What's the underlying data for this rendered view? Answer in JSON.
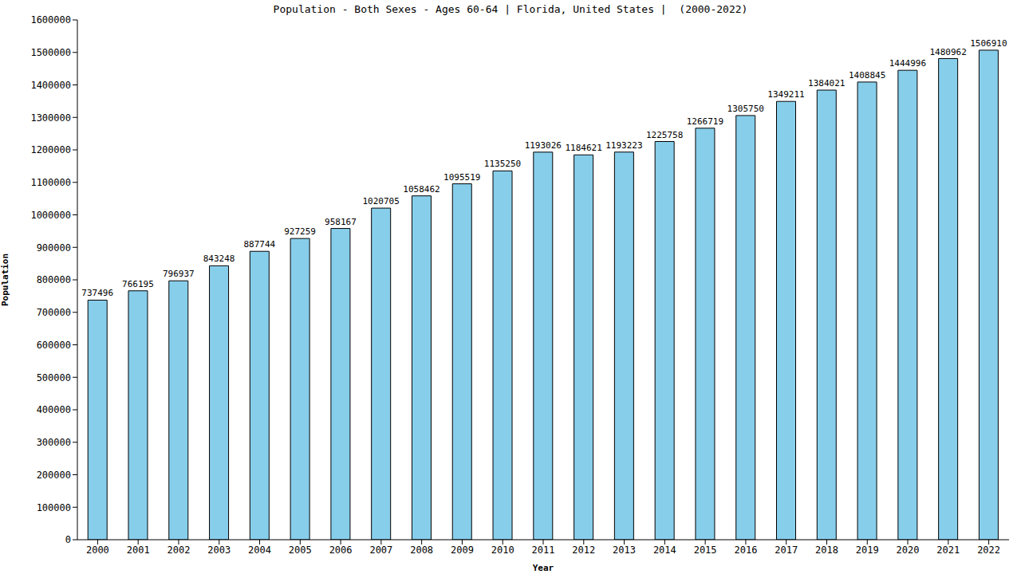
{
  "chart_data": {
    "type": "bar",
    "title": "Population - Both Sexes - Ages 60-64 | Florida, United States |  (2000-2022)",
    "x_label": "Year",
    "y_label": "Population",
    "categories": [
      "2000",
      "2001",
      "2002",
      "2003",
      "2004",
      "2005",
      "2006",
      "2007",
      "2008",
      "2009",
      "2010",
      "2011",
      "2012",
      "2013",
      "2014",
      "2015",
      "2016",
      "2017",
      "2018",
      "2019",
      "2020",
      "2021",
      "2022"
    ],
    "values": [
      737496,
      766195,
      796937,
      843248,
      887744,
      927259,
      958167,
      1020705,
      1058462,
      1095519,
      1135250,
      1193026,
      1184621,
      1193223,
      1225758,
      1266719,
      1305750,
      1349211,
      1384021,
      1408845,
      1444996,
      1480962,
      1506910
    ],
    "color": "#87ceeb",
    "ylim": [
      0,
      1600000
    ],
    "yticks": [
      0,
      100000,
      200000,
      300000,
      400000,
      500000,
      600000,
      700000,
      800000,
      900000,
      1000000,
      1100000,
      1200000,
      1300000,
      1400000,
      1500000,
      1600000
    ],
    "grid": false,
    "data_labels": true
  }
}
